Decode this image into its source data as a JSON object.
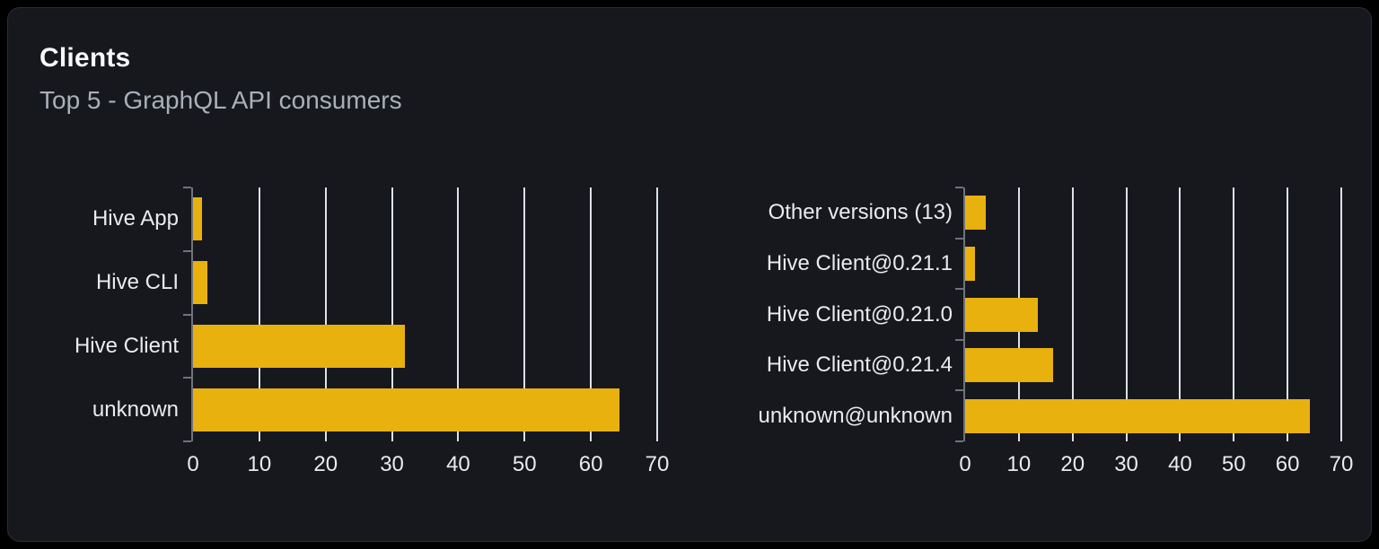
{
  "card": {
    "title": "Clients",
    "subtitle": "Top 5 - GraphQL API consumers"
  },
  "colors": {
    "page_bg": "#000000",
    "card_bg": "#16181e",
    "card_border": "#2b2e35",
    "title_text": "#f7f8f9",
    "subtitle_text": "#a9b0ba",
    "bar": "#e8b10e",
    "gridline": "#dce1e9",
    "axis": "#6e737b",
    "chart_text": "#e9ebee"
  },
  "chart_data": [
    {
      "type": "bar",
      "orientation": "horizontal",
      "name": "clients-by-name",
      "categories": [
        "Hive App",
        "Hive CLI",
        "Hive Client",
        "unknown"
      ],
      "values": [
        1.4,
        2.1,
        32,
        64.3
      ],
      "x_ticks": [
        0,
        10,
        20,
        30,
        40,
        50,
        60,
        70
      ],
      "xlim": [
        0,
        70
      ],
      "grid": true,
      "legend": false
    },
    {
      "type": "bar",
      "orientation": "horizontal",
      "name": "clients-by-version",
      "categories": [
        "Other versions (13)",
        "Hive Client@0.21.1",
        "Hive Client@0.21.0",
        "Hive Client@0.21.4",
        "unknown@unknown"
      ],
      "values": [
        3.9,
        1.9,
        13.6,
        16.4,
        64.2
      ],
      "x_ticks": [
        0,
        10,
        20,
        30,
        40,
        50,
        60,
        70
      ],
      "xlim": [
        0,
        70
      ],
      "grid": true,
      "legend": false
    }
  ]
}
